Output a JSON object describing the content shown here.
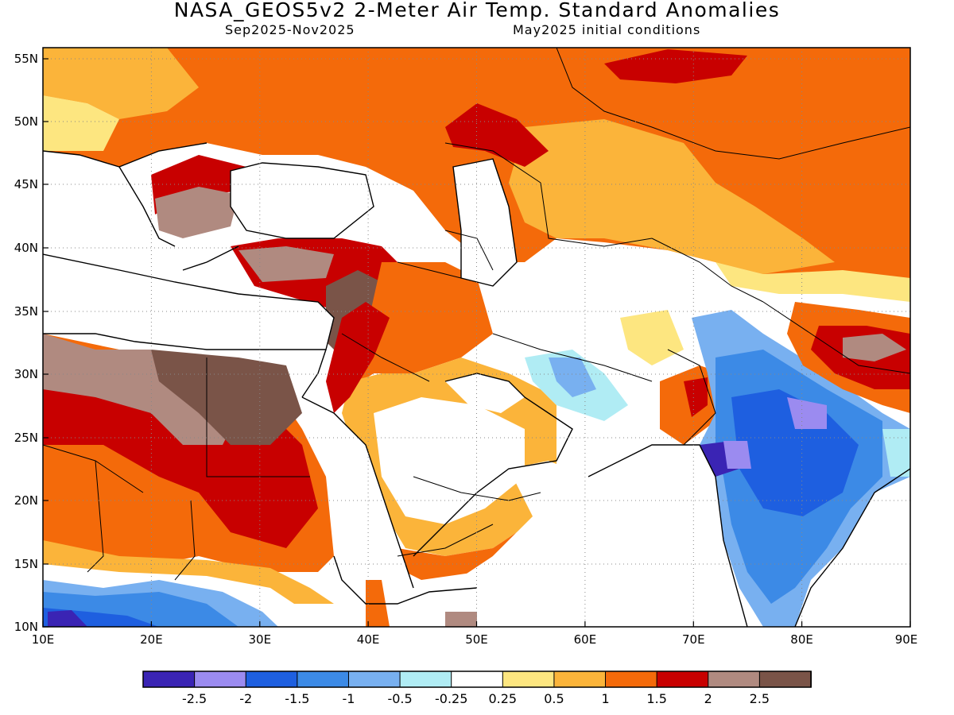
{
  "header": {
    "title": "NASA_GEOS5v2 2-Meter Air Temp. Standard Anomalies",
    "period": "Sep2025-Nov2025",
    "init": "May2025 initial conditions"
  },
  "axes": {
    "lon_labels": [
      "10E",
      "20E",
      "30E",
      "40E",
      "50E",
      "60E",
      "70E",
      "80E",
      "90E"
    ],
    "lat_labels": [
      "55N",
      "50N",
      "45N",
      "40N",
      "35N",
      "30N",
      "25N",
      "20N",
      "15N",
      "10N"
    ],
    "lon_range": [
      10,
      90
    ],
    "lat_range": [
      10,
      56
    ],
    "gridlines": "dotted"
  },
  "colorbar": {
    "colors": [
      "#3a24b4",
      "#9b8bf0",
      "#1e5fe0",
      "#3c8ae6",
      "#78b0f0",
      "#b0ecf4",
      "#ffffff",
      "#fde680",
      "#fbb43a",
      "#f46a0a",
      "#c80000",
      "#b08a80",
      "#7a5448"
    ],
    "labels": [
      "-2.5",
      "-2",
      "-1.5",
      "-1",
      "-0.5",
      "-0.25",
      "0.25",
      "0.5",
      "1",
      "1.5",
      "2",
      "2.5"
    ]
  }
}
